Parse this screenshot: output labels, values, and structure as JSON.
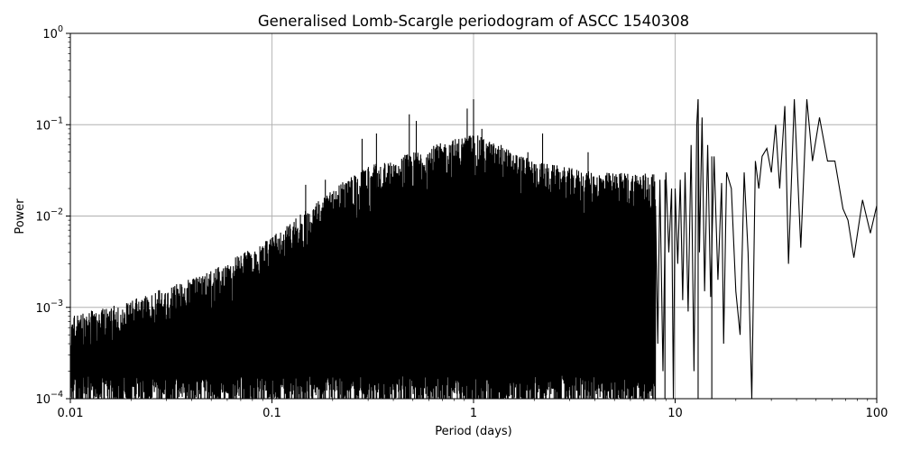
{
  "chart_data": {
    "type": "line",
    "title": "Generalised Lomb-Scargle periodogram of ASCC 1540308",
    "xlabel": "Period (days)",
    "ylabel": "Power",
    "xscale": "log",
    "yscale": "log",
    "xlim": [
      0.01,
      100
    ],
    "ylim": [
      0.0001,
      1
    ],
    "grid": true,
    "x_ticks": [
      {
        "value": 0.01,
        "label": "0.01"
      },
      {
        "value": 0.1,
        "label": "0.1"
      },
      {
        "value": 1,
        "label": "1"
      },
      {
        "value": 10,
        "label": "10"
      },
      {
        "value": 100,
        "label": "100"
      }
    ],
    "y_ticks": [
      {
        "value": 0.0001,
        "base": "10",
        "exp": "−4"
      },
      {
        "value": 0.001,
        "base": "10",
        "exp": "−3"
      },
      {
        "value": 0.01,
        "base": "10",
        "exp": "−2"
      },
      {
        "value": 0.1,
        "base": "10",
        "exp": "−1"
      },
      {
        "value": 1,
        "base": "10",
        "exp": "0"
      }
    ],
    "series": [
      {
        "color": "#000000",
        "envelope": [
          [
            0.01,
            0.0008
          ],
          [
            0.02,
            0.0012
          ],
          [
            0.05,
            0.0025
          ],
          [
            0.1,
            0.006
          ],
          [
            0.2,
            0.02
          ],
          [
            0.3,
            0.035
          ],
          [
            0.5,
            0.05
          ],
          [
            0.8,
            0.07
          ],
          [
            1.0,
            0.08
          ],
          [
            2.0,
            0.04
          ],
          [
            4.0,
            0.03
          ],
          [
            8.0,
            0.03
          ]
        ],
        "peaks": [
          [
            0.147,
            0.022
          ],
          [
            0.184,
            0.025
          ],
          [
            0.28,
            0.07
          ],
          [
            0.33,
            0.08
          ],
          [
            0.405,
            0.015
          ],
          [
            0.48,
            0.13
          ],
          [
            0.52,
            0.11
          ],
          [
            0.93,
            0.15
          ],
          [
            1.0,
            0.19
          ],
          [
            1.1,
            0.09
          ],
          [
            1.37,
            0.06
          ],
          [
            1.86,
            0.05
          ],
          [
            2.2,
            0.08
          ],
          [
            3.7,
            0.05
          ],
          [
            8.9,
            0.025
          ],
          [
            13.0,
            0.19
          ],
          [
            15.2,
            0.045
          ]
        ],
        "smooth_points": [
          [
            8.0,
            0.012
          ],
          [
            8.2,
            0.0004
          ],
          [
            8.4,
            0.025
          ],
          [
            8.7,
            0.0002
          ],
          [
            9.0,
            0.03
          ],
          [
            9.3,
            0.004
          ],
          [
            9.6,
            0.02
          ],
          [
            9.8,
            0.0001
          ],
          [
            10.0,
            0.02
          ],
          [
            10.3,
            0.003
          ],
          [
            10.6,
            0.025
          ],
          [
            10.9,
            0.0012
          ],
          [
            11.2,
            0.03
          ],
          [
            11.6,
            0.0009
          ],
          [
            12.0,
            0.06
          ],
          [
            12.4,
            0.0002
          ],
          [
            12.8,
            0.1
          ],
          [
            13.0,
            0.19
          ],
          [
            13.2,
            0.004
          ],
          [
            13.6,
            0.12
          ],
          [
            14.0,
            0.0015
          ],
          [
            14.5,
            0.06
          ],
          [
            15.0,
            0.0013
          ],
          [
            15.6,
            0.045
          ],
          [
            16.3,
            0.002
          ],
          [
            17.0,
            0.023
          ],
          [
            17.4,
            0.0004
          ],
          [
            18.0,
            0.03
          ],
          [
            19.0,
            0.02
          ],
          [
            20.0,
            0.0015
          ],
          [
            21.0,
            0.0005
          ],
          [
            22.0,
            0.03
          ],
          [
            23.0,
            0.004
          ],
          [
            24.0,
            0.0001
          ],
          [
            25.0,
            0.04
          ],
          [
            26.0,
            0.02
          ],
          [
            27.0,
            0.045
          ],
          [
            28.5,
            0.055
          ],
          [
            30.0,
            0.03
          ],
          [
            31.5,
            0.1
          ],
          [
            33.0,
            0.02
          ],
          [
            35.0,
            0.16
          ],
          [
            36.5,
            0.003
          ],
          [
            39.0,
            0.19
          ],
          [
            42.0,
            0.0045
          ],
          [
            45.0,
            0.19
          ],
          [
            48.0,
            0.04
          ],
          [
            52.0,
            0.12
          ],
          [
            57.0,
            0.04
          ],
          [
            62.0,
            0.04
          ],
          [
            68.0,
            0.012
          ],
          [
            72.0,
            0.009
          ],
          [
            77.0,
            0.0035
          ],
          [
            85.0,
            0.015
          ],
          [
            93.0,
            0.0065
          ],
          [
            100.0,
            0.013
          ]
        ]
      }
    ]
  }
}
